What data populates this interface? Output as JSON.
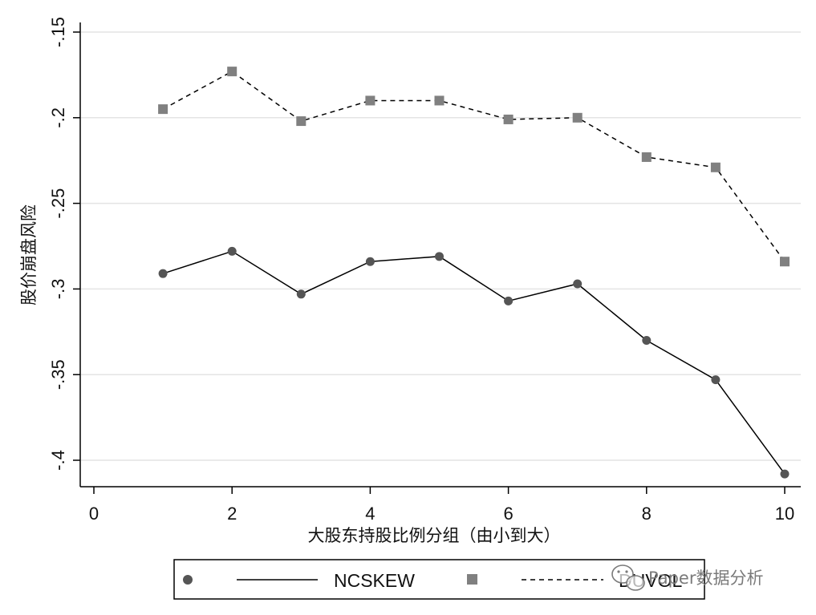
{
  "chart_data": {
    "type": "line",
    "title": "",
    "xlabel": "大股东持股比例分组（由小到大）",
    "ylabel": "股价崩盘风险",
    "x": [
      1,
      2,
      3,
      4,
      5,
      6,
      7,
      8,
      9,
      10
    ],
    "xlim": [
      0,
      10
    ],
    "ylim": [
      -0.415,
      -0.15
    ],
    "xticks": [
      0,
      2,
      4,
      6,
      8,
      10
    ],
    "xtick_labels": [
      "0",
      "2",
      "4",
      "6",
      "8",
      "10"
    ],
    "yticks": [
      -0.15,
      -0.2,
      -0.25,
      -0.3,
      -0.35,
      -0.4
    ],
    "ytick_labels": [
      "-.15",
      "-.2",
      "-.25",
      "-.3",
      "-.35",
      "-.4"
    ],
    "grid": true,
    "legend_position": "bottom",
    "series": [
      {
        "name": "NCSKEW",
        "marker": "circle",
        "line_style": "solid",
        "color": "#555555",
        "values": [
          -0.291,
          -0.278,
          -0.303,
          -0.284,
          -0.281,
          -0.307,
          -0.297,
          -0.33,
          -0.353,
          -0.408
        ]
      },
      {
        "name": "DUVOL",
        "marker": "square",
        "line_style": "dashed",
        "color": "#808080",
        "values": [
          -0.195,
          -0.173,
          -0.202,
          -0.19,
          -0.19,
          -0.201,
          -0.2,
          -0.223,
          -0.229,
          -0.284
        ]
      }
    ]
  },
  "watermark": {
    "text": "Paper数据分析",
    "icon": "wechat-icon"
  }
}
